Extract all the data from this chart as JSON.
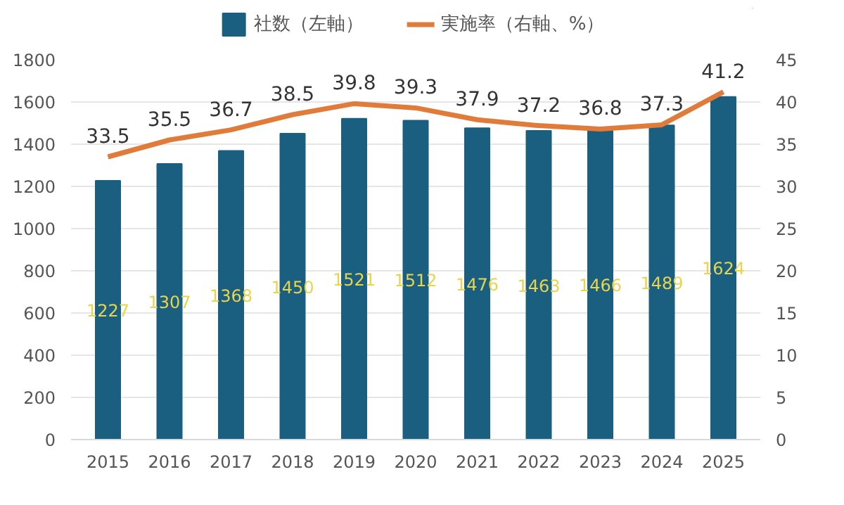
{
  "chart_data": {
    "type": "bar",
    "categories": [
      "2015",
      "2016",
      "2017",
      "2018",
      "2019",
      "2020",
      "2021",
      "2022",
      "2023",
      "2024",
      "2025"
    ],
    "series": [
      {
        "name": "社数（左軸）",
        "color": "#1a5f80",
        "values": [
          1227,
          1307,
          1368,
          1450,
          1521,
          1512,
          1476,
          1463,
          1466,
          1489,
          1624
        ]
      },
      {
        "name": "実施率（右軸、%）",
        "type": "line",
        "axis": "y2",
        "color": "#e07b39",
        "values": [
          33.5,
          35.5,
          36.7,
          38.5,
          39.8,
          39.3,
          37.9,
          37.2,
          36.8,
          37.3,
          41.2
        ]
      }
    ],
    "ylim": [
      0,
      1800
    ],
    "yticks": [
      0,
      200,
      400,
      600,
      800,
      1000,
      1200,
      1400,
      1600,
      1800
    ],
    "y2lim": [
      0,
      45
    ],
    "y2ticks": [
      0,
      5,
      10,
      15,
      20,
      25,
      30,
      35,
      40,
      45
    ],
    "grid": "y",
    "legend": "top",
    "data_labels": true,
    "marker": "none",
    "line_style": "solid"
  }
}
